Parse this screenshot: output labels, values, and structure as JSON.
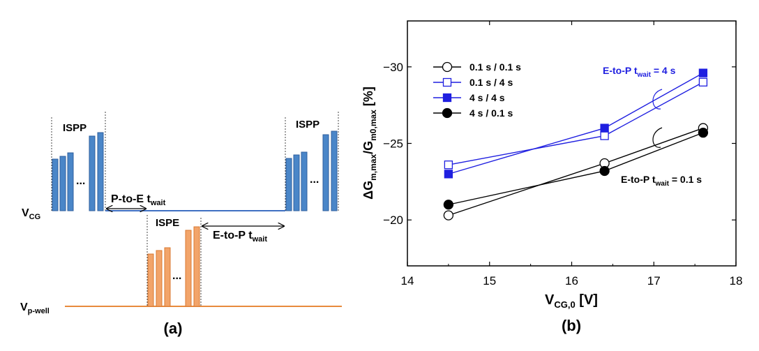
{
  "panel_a": {
    "caption": "(a)",
    "labels": {
      "vcg_main": "V",
      "vcg_sub": "CG",
      "vpwell_main": "V",
      "vpwell_sub": "p-well",
      "ispp_left": "ISPP",
      "ispp_right": "ISPP",
      "ispe": "ISPE",
      "dots": "...",
      "ptoe_main": "P-to-E t",
      "ptoe_sub": "wait",
      "etop_main": "E-to-P t",
      "etop_sub": "wait"
    },
    "colors": {
      "vcg": "#4a86c8",
      "vcg_line": "#3f6fc2",
      "pwell": "#ef9a5a",
      "pwell_line": "#e88a3c"
    }
  },
  "panel_b": {
    "caption": "(b)",
    "annotations": {
      "upper_main": "E-to-P t",
      "upper_sub": "wait",
      "upper_tail": " = 4 s",
      "lower_main": "E-to-P t",
      "lower_sub": "wait",
      "lower_tail": " = 0.1 s"
    }
  },
  "chart_data": {
    "type": "line",
    "xlabel_main": "V",
    "xlabel_sub": "CG,0",
    "xlabel_tail": " [V]",
    "ylabel_main": "ΔG",
    "ylabel_sub1": "m,max",
    "ylabel_mid": "/G",
    "ylabel_sub2": "m0,max",
    "ylabel_tail": " [%]",
    "xlim": [
      14,
      18
    ],
    "ylim": [
      -17,
      -33
    ],
    "y_inverted": true,
    "xticks": [
      14,
      15,
      16,
      17,
      18
    ],
    "xtick_labels": [
      "14",
      "15",
      "16",
      "17",
      "18"
    ],
    "yticks": [
      -20,
      -25,
      -30
    ],
    "ytick_labels": [
      "−20",
      "−25",
      "−30"
    ],
    "legend_position": "top-left",
    "series": [
      {
        "name": "0.1 s / 0.1 s",
        "color": "#000000",
        "marker": "circle",
        "filled": false,
        "x": [
          14.5,
          16.4,
          17.6
        ],
        "y": [
          -20.3,
          -23.7,
          -26.0
        ]
      },
      {
        "name": "0.1 s / 4 s",
        "color": "#1f1fe0",
        "marker": "square",
        "filled": false,
        "x": [
          14.5,
          16.4,
          17.6
        ],
        "y": [
          -23.6,
          -25.5,
          -29.0
        ]
      },
      {
        "name": "4 s / 4 s",
        "color": "#1f1fe0",
        "marker": "square",
        "filled": true,
        "x": [
          14.5,
          16.4,
          17.6
        ],
        "y": [
          -23.0,
          -26.0,
          -29.6
        ]
      },
      {
        "name": "4 s / 0.1 s",
        "color": "#000000",
        "marker": "circle",
        "filled": true,
        "x": [
          14.5,
          16.4,
          17.6
        ],
        "y": [
          -21.0,
          -23.2,
          -25.7
        ]
      }
    ]
  }
}
